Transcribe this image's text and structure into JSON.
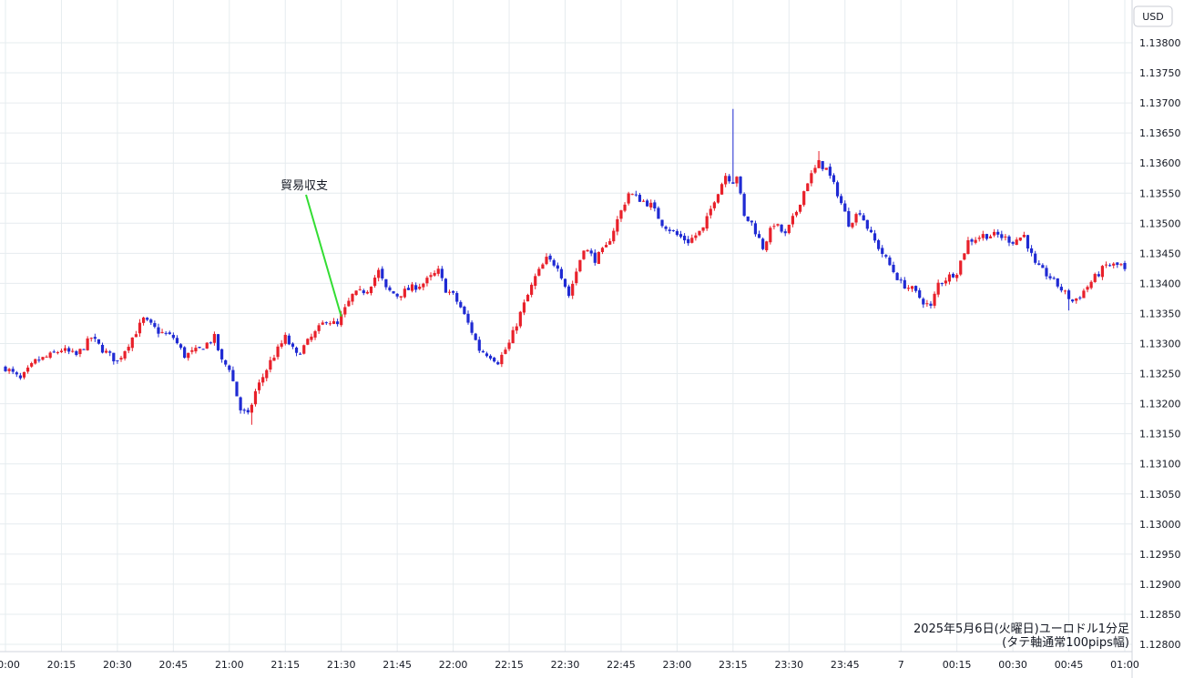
{
  "currency_label": "USD",
  "caption": {
    "line1": "2025年5月6日(火曜日)ユーロドル1分足",
    "line2": "(タテ軸通常100pips幅)"
  },
  "annotation": {
    "text": "貿易収支",
    "x_time": "21:30",
    "price": 1.13345
  },
  "colors": {
    "up": "#e8202a",
    "down": "#1f2ad3",
    "grid": "#e6ecef",
    "annotation_line": "#33dd33",
    "axis_text": "#131722"
  },
  "chart_data": {
    "type": "candlestick",
    "ylim": [
      1.1279,
      1.13815
    ],
    "y_ticks": [
      "1.13800",
      "1.13750",
      "1.13700",
      "1.13650",
      "1.13600",
      "1.13550",
      "1.13500",
      "1.13450",
      "1.13400",
      "1.13350",
      "1.13300",
      "1.13250",
      "1.13200",
      "1.13150",
      "1.13100",
      "1.13050",
      "1.13000",
      "1.12950",
      "1.12900",
      "1.12850",
      "1.12800"
    ],
    "x_start": "20:00",
    "x_end": "01:00",
    "x_tick_labels": [
      "20:00",
      "20:15",
      "20:30",
      "20:45",
      "21:00",
      "21:15",
      "21:30",
      "21:45",
      "22:00",
      "22:15",
      "22:30",
      "22:45",
      "23:00",
      "23:15",
      "23:30",
      "23:45",
      "7",
      "00:15",
      "00:30",
      "00:45",
      "01:00"
    ],
    "close_anchors": [
      [
        "20:00",
        1.1326
      ],
      [
        "20:04",
        1.1324
      ],
      [
        "20:08",
        1.1327
      ],
      [
        "20:12",
        1.1328
      ],
      [
        "20:15",
        1.1329
      ],
      [
        "20:19",
        1.1328
      ],
      [
        "20:23",
        1.1331
      ],
      [
        "20:26",
        1.1329
      ],
      [
        "20:30",
        1.1327
      ],
      [
        "20:34",
        1.1331
      ],
      [
        "20:37",
        1.1334
      ],
      [
        "20:41",
        1.1332
      ],
      [
        "20:45",
        1.1331
      ],
      [
        "20:48",
        1.1328
      ],
      [
        "20:52",
        1.1329
      ],
      [
        "20:56",
        1.1331
      ],
      [
        "20:58",
        1.1327
      ],
      [
        "21:00",
        1.1326
      ],
      [
        "21:03",
        1.1319
      ],
      [
        "21:05",
        1.1318
      ],
      [
        "21:07",
        1.1322
      ],
      [
        "21:11",
        1.1327
      ],
      [
        "21:15",
        1.1331
      ],
      [
        "21:18",
        1.1328
      ],
      [
        "21:22",
        1.1331
      ],
      [
        "21:26",
        1.1334
      ],
      [
        "21:29",
        1.1333
      ],
      [
        "21:30",
        1.13345
      ],
      [
        "21:33",
        1.1338
      ],
      [
        "21:37",
        1.1339
      ],
      [
        "21:40",
        1.1342
      ],
      [
        "21:42",
        1.1339
      ],
      [
        "21:45",
        1.1338
      ],
      [
        "21:48",
        1.1339
      ],
      [
        "21:52",
        1.134
      ],
      [
        "21:56",
        1.1342
      ],
      [
        "21:58",
        1.1339
      ],
      [
        "22:00",
        1.1338
      ],
      [
        "22:02",
        1.1336
      ],
      [
        "22:05",
        1.1332
      ],
      [
        "22:07",
        1.1329
      ],
      [
        "22:10",
        1.1328
      ],
      [
        "22:12",
        1.1327
      ],
      [
        "22:15",
        1.133
      ],
      [
        "22:18",
        1.1335
      ],
      [
        "22:22",
        1.1341
      ],
      [
        "22:25",
        1.1344
      ],
      [
        "22:28",
        1.1343
      ],
      [
        "22:31",
        1.1338
      ],
      [
        "22:35",
        1.1346
      ],
      [
        "22:38",
        1.1344
      ],
      [
        "22:41",
        1.1346
      ],
      [
        "22:45",
        1.1352
      ],
      [
        "22:47",
        1.1355
      ],
      [
        "22:50",
        1.1354
      ],
      [
        "22:53",
        1.1353
      ],
      [
        "22:56",
        1.135
      ],
      [
        "23:00",
        1.1348
      ],
      [
        "23:03",
        1.1347
      ],
      [
        "23:07",
        1.1349
      ],
      [
        "23:10",
        1.1354
      ],
      [
        "23:13",
        1.1358
      ],
      [
        "23:15",
        1.1357
      ],
      [
        "23:16",
        1.1358
      ],
      [
        "23:18",
        1.1351
      ],
      [
        "23:20",
        1.135
      ],
      [
        "23:23",
        1.1346
      ],
      [
        "23:26",
        1.135
      ],
      [
        "23:29",
        1.1348
      ],
      [
        "23:32",
        1.1352
      ],
      [
        "23:35",
        1.1357
      ],
      [
        "23:38",
        1.136
      ],
      [
        "23:40",
        1.1359
      ],
      [
        "23:43",
        1.1355
      ],
      [
        "23:46",
        1.135
      ],
      [
        "23:49",
        1.1352
      ],
      [
        "23:52",
        1.1348
      ],
      [
        "23:55",
        1.1345
      ],
      [
        "23:58",
        1.1342
      ],
      [
        "00:00",
        1.134
      ],
      [
        "00:03",
        1.1339
      ],
      [
        "00:06",
        1.1337
      ],
      [
        "00:08",
        1.1336
      ],
      [
        "00:10",
        1.134
      ],
      [
        "00:15",
        1.1342
      ],
      [
        "00:18",
        1.1347
      ],
      [
        "00:22",
        1.1348
      ],
      [
        "00:26",
        1.1348
      ],
      [
        "00:30",
        1.1347
      ],
      [
        "00:33",
        1.1348
      ],
      [
        "00:36",
        1.1343
      ],
      [
        "00:40",
        1.1341
      ],
      [
        "00:43",
        1.1339
      ],
      [
        "00:46",
        1.1337
      ],
      [
        "00:48",
        1.1338
      ],
      [
        "00:52",
        1.1341
      ],
      [
        "00:55",
        1.1343
      ],
      [
        "00:59",
        1.1343
      ],
      [
        "01:00",
        1.1342
      ]
    ],
    "spikes": [
      {
        "time": "23:15",
        "high": 1.1369
      },
      {
        "time": "23:38",
        "high": 1.1362
      },
      {
        "time": "21:06",
        "low": 1.13165
      },
      {
        "time": "00:45",
        "low": 1.13355
      }
    ]
  }
}
